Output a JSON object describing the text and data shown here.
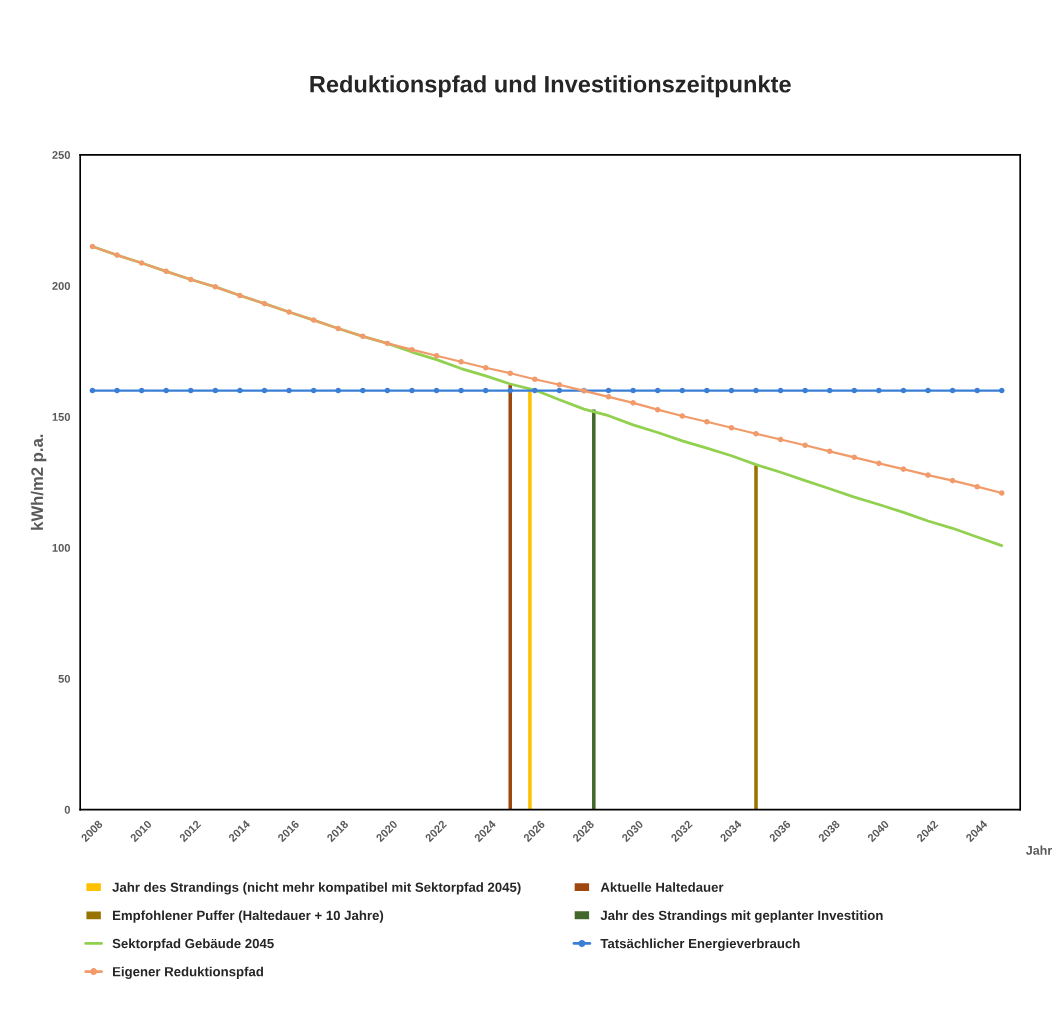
{
  "chart_data": {
    "type": "line",
    "title": "Reduktionspfad und Investitionszeitpunkte",
    "xlabel": "Jahr",
    "ylabel": "kWh/m2 p.a.",
    "xlim": [
      2007.5,
      2045.75
    ],
    "xticks": [
      2008,
      2010,
      2012,
      2014,
      2016,
      2018,
      2020,
      2022,
      2024,
      2026,
      2028,
      2030,
      2032,
      2034,
      2036,
      2038,
      2040,
      2042,
      2044
    ],
    "ylim": [
      0,
      250
    ],
    "yticks": [
      0,
      50,
      100,
      150,
      200,
      250
    ],
    "grid": false,
    "legend": "bottom",
    "series": [
      {
        "name": "Jahr des Strandings (nicht mehr kompatibel mit Sektorpfad 2045)",
        "type": "bar",
        "color": "#ffc000",
        "x": [
          2025.8
        ],
        "values": [
          160
        ]
      },
      {
        "name": "Aktuelle Haltedauer",
        "type": "bar",
        "color": "#9e480e",
        "x": [
          2025
        ],
        "values": [
          162.5
        ]
      },
      {
        "name": "Empfohlener Puffer (Haltedauer + 10 Jahre)",
        "type": "bar",
        "color": "#997300",
        "x": [
          2035
        ],
        "values": [
          131.7
        ]
      },
      {
        "name": "Jahr des Strandings mit geplanter Investition",
        "type": "bar",
        "color": "#43682b",
        "x": [
          2028.4
        ],
        "values": [
          153
        ]
      },
      {
        "name": "Sektorpfad Gebäude 2045",
        "color": "#92d050",
        "marker": "none",
        "x": [
          2008,
          2009,
          2010,
          2011,
          2012,
          2013,
          2014,
          2015,
          2016,
          2017,
          2018,
          2019,
          2020,
          2021,
          2022,
          2023,
          2024,
          2025,
          2026,
          2027,
          2028,
          2029,
          2030,
          2031,
          2032,
          2033,
          2034,
          2035,
          2036,
          2037,
          2038,
          2039,
          2040,
          2041,
          2042,
          2043,
          2044,
          2045
        ],
        "values": [
          215.0,
          211.7,
          208.7,
          205.5,
          202.4,
          199.6,
          196.3,
          193.2,
          190.0,
          186.9,
          183.7,
          180.7,
          178.0,
          174.7,
          171.8,
          168.4,
          165.6,
          162.5,
          160.2,
          156.5,
          152.9,
          150.4,
          146.9,
          144.0,
          140.8,
          138.0,
          135.1,
          131.7,
          128.8,
          125.6,
          122.5,
          119.3,
          116.5,
          113.5,
          110.2,
          107.4,
          104.1,
          100.8
        ]
      },
      {
        "name": "Tatsächlicher Energieverbrauch",
        "color": "#3a7fd5",
        "marker": "circle",
        "x": [
          2008,
          2009,
          2010,
          2011,
          2012,
          2013,
          2014,
          2015,
          2016,
          2017,
          2018,
          2019,
          2020,
          2021,
          2022,
          2023,
          2024,
          2025,
          2026,
          2027,
          2028,
          2029,
          2030,
          2031,
          2032,
          2033,
          2034,
          2035,
          2036,
          2037,
          2038,
          2039,
          2040,
          2041,
          2042,
          2043,
          2044,
          2045
        ],
        "values": [
          160,
          160,
          160,
          160,
          160,
          160,
          160,
          160,
          160,
          160,
          160,
          160,
          160,
          160,
          160,
          160,
          160,
          160,
          160,
          160,
          160,
          160,
          160,
          160,
          160,
          160,
          160,
          160,
          160,
          160,
          160,
          160,
          160,
          160,
          160,
          160,
          160,
          160
        ]
      },
      {
        "name": "Eigener Reduktionspfad",
        "color": "#f19a6a",
        "marker": "circle",
        "x": [
          2008,
          2009,
          2010,
          2011,
          2012,
          2013,
          2014,
          2015,
          2016,
          2017,
          2018,
          2019,
          2020,
          2021,
          2022,
          2023,
          2024,
          2025,
          2026,
          2027,
          2028,
          2029,
          2030,
          2031,
          2032,
          2033,
          2034,
          2035,
          2036,
          2037,
          2038,
          2039,
          2040,
          2041,
          2042,
          2043,
          2044,
          2045
        ],
        "values": [
          215.0,
          211.7,
          208.7,
          205.5,
          202.4,
          199.6,
          196.3,
          193.2,
          190.0,
          186.9,
          183.7,
          180.7,
          178.0,
          175.6,
          173.3,
          171.0,
          168.7,
          166.6,
          164.3,
          162.2,
          159.9,
          157.6,
          155.3,
          152.7,
          150.3,
          148.1,
          145.8,
          143.5,
          141.3,
          139.1,
          136.8,
          134.5,
          132.2,
          130.0,
          127.7,
          125.6,
          123.3,
          120.9
        ]
      }
    ]
  }
}
